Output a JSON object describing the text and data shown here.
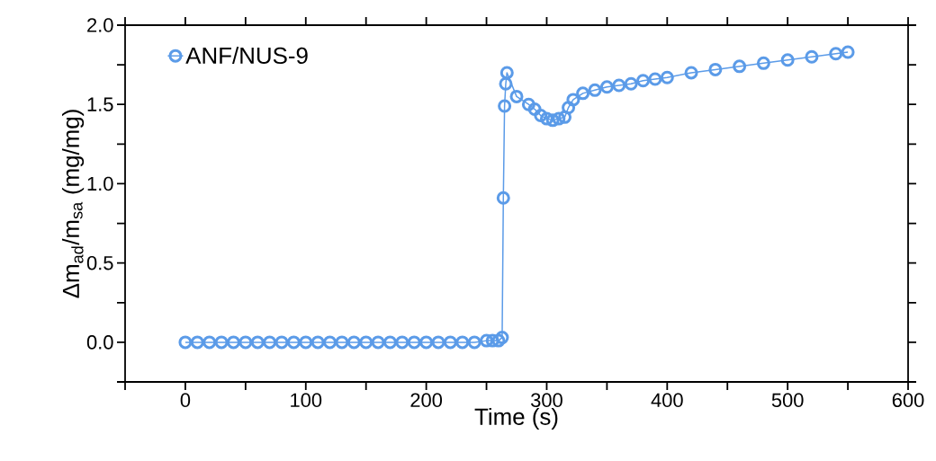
{
  "chart_data": {
    "type": "line",
    "xlabel": "Time (s)",
    "ylabel": "Δm$_{ad}$/m$_{sa}$ (mg/mg)",
    "xlim": [
      -50,
      600
    ],
    "ylim": [
      -0.25,
      2.0
    ],
    "xticks": [
      {
        "value": -50,
        "label": null
      },
      0,
      {
        "value": 50,
        "label": null
      },
      100,
      {
        "value": 150,
        "label": null
      },
      200,
      {
        "value": 250,
        "label": null
      },
      300,
      {
        "value": 350,
        "label": null
      },
      400,
      {
        "value": 450,
        "label": null
      },
      500,
      {
        "value": 550,
        "label": null
      },
      600
    ],
    "yticks": [
      {
        "value": -0.25,
        "label": null
      },
      {
        "value": 0,
        "label": "0.0"
      },
      {
        "value": 0.25,
        "label": null
      },
      {
        "value": 0.5,
        "label": "0.5"
      },
      {
        "value": 0.75,
        "label": null
      },
      {
        "value": 1,
        "label": "1.0"
      },
      {
        "value": 1.25,
        "label": null
      },
      {
        "value": 1.5,
        "label": "1.5"
      },
      {
        "value": 1.75,
        "label": null
      },
      {
        "value": 2,
        "label": "2.0"
      }
    ],
    "legend": "top left",
    "marker": "circle",
    "line_style": "solid",
    "grid": false,
    "series": [
      {
        "name": "ANF/NUS-9",
        "color": "#5b9be8",
        "x": [
          0,
          10,
          20,
          30,
          40,
          50,
          60,
          70,
          80,
          90,
          100,
          110,
          120,
          130,
          140,
          150,
          160,
          170,
          180,
          190,
          200,
          210,
          220,
          230,
          240,
          250,
          255,
          260,
          263,
          264,
          265,
          266,
          267,
          275,
          285,
          290,
          295,
          300,
          305,
          310,
          315,
          318,
          322,
          330,
          340,
          350,
          360,
          370,
          380,
          390,
          400,
          420,
          440,
          460,
          480,
          500,
          520,
          540,
          550
        ],
        "values": [
          0,
          0,
          0,
          0,
          0,
          0,
          0,
          0,
          0,
          0,
          0,
          0,
          0,
          0,
          0,
          0,
          0,
          0,
          0,
          0,
          0,
          0,
          0,
          0,
          0,
          0.01,
          0.01,
          0.01,
          0.03,
          0.91,
          1.49,
          1.63,
          1.7,
          1.55,
          1.5,
          1.47,
          1.43,
          1.41,
          1.4,
          1.41,
          1.42,
          1.48,
          1.53,
          1.57,
          1.59,
          1.61,
          1.62,
          1.63,
          1.65,
          1.66,
          1.67,
          1.7,
          1.72,
          1.74,
          1.76,
          1.78,
          1.8,
          1.82,
          1.83
        ]
      }
    ]
  }
}
